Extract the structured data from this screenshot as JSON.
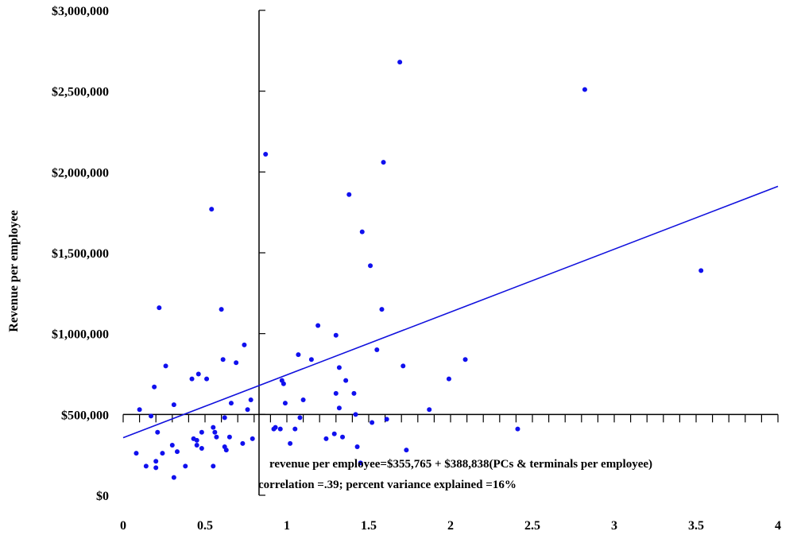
{
  "chart_data": {
    "type": "scatter",
    "title": "",
    "xlabel": "",
    "ylabel": "Revenue per employee",
    "xlim": [
      0,
      4
    ],
    "ylim": [
      0,
      3000000
    ],
    "x_ticks": [
      0,
      0.5,
      1,
      1.5,
      2,
      2.5,
      3,
      3.5,
      4
    ],
    "x_tick_labels": [
      "0",
      "0.5",
      "1",
      "1.5",
      "2",
      "2.5",
      "3",
      "3.5",
      "4"
    ],
    "y_ticks": [
      0,
      500000,
      1000000,
      1500000,
      2000000,
      2500000,
      3000000
    ],
    "y_tick_labels": [
      "$0",
      "$500,000",
      "$1,000,000",
      "$1,500,000",
      "$2,000,000",
      "$2,500,000",
      "$3,000,000"
    ],
    "axis_crossing": {
      "x": 0.83,
      "y": 500000
    },
    "grid": false,
    "colors": {
      "points": "#1010ee",
      "trend": "#1010dd",
      "axes": "#000000"
    },
    "series": [
      {
        "points": [
          [
            0.08,
            260000
          ],
          [
            0.1,
            530000
          ],
          [
            0.14,
            180000
          ],
          [
            0.17,
            490000
          ],
          [
            0.19,
            670000
          ],
          [
            0.2,
            210000
          ],
          [
            0.2,
            170000
          ],
          [
            0.21,
            390000
          ],
          [
            0.22,
            1160000
          ],
          [
            0.24,
            260000
          ],
          [
            0.26,
            800000
          ],
          [
            0.3,
            310000
          ],
          [
            0.31,
            110000
          ],
          [
            0.31,
            560000
          ],
          [
            0.33,
            270000
          ],
          [
            0.38,
            180000
          ],
          [
            0.42,
            720000
          ],
          [
            0.43,
            350000
          ],
          [
            0.45,
            310000
          ],
          [
            0.45,
            340000
          ],
          [
            0.46,
            750000
          ],
          [
            0.48,
            290000
          ],
          [
            0.48,
            390000
          ],
          [
            0.51,
            720000
          ],
          [
            0.54,
            1770000
          ],
          [
            0.55,
            180000
          ],
          [
            0.55,
            420000
          ],
          [
            0.56,
            390000
          ],
          [
            0.57,
            360000
          ],
          [
            0.6,
            1150000
          ],
          [
            0.61,
            840000
          ],
          [
            0.62,
            300000
          ],
          [
            0.62,
            480000
          ],
          [
            0.63,
            280000
          ],
          [
            0.65,
            360000
          ],
          [
            0.66,
            570000
          ],
          [
            0.69,
            820000
          ],
          [
            0.73,
            320000
          ],
          [
            0.74,
            930000
          ],
          [
            0.76,
            530000
          ],
          [
            0.78,
            590000
          ],
          [
            0.79,
            350000
          ],
          [
            0.87,
            2110000
          ],
          [
            0.92,
            410000
          ],
          [
            0.93,
            420000
          ],
          [
            0.96,
            410000
          ],
          [
            0.97,
            710000
          ],
          [
            0.98,
            690000
          ],
          [
            0.99,
            570000
          ],
          [
            1.02,
            320000
          ],
          [
            1.05,
            410000
          ],
          [
            1.07,
            870000
          ],
          [
            1.08,
            480000
          ],
          [
            1.1,
            590000
          ],
          [
            1.15,
            840000
          ],
          [
            1.19,
            1050000
          ],
          [
            1.24,
            350000
          ],
          [
            1.29,
            380000
          ],
          [
            1.3,
            630000
          ],
          [
            1.3,
            990000
          ],
          [
            1.32,
            790000
          ],
          [
            1.32,
            540000
          ],
          [
            1.34,
            360000
          ],
          [
            1.36,
            710000
          ],
          [
            1.38,
            1860000
          ],
          [
            1.41,
            630000
          ],
          [
            1.42,
            500000
          ],
          [
            1.43,
            300000
          ],
          [
            1.45,
            200000
          ],
          [
            1.46,
            1630000
          ],
          [
            1.51,
            1420000
          ],
          [
            1.52,
            450000
          ],
          [
            1.55,
            900000
          ],
          [
            1.58,
            1150000
          ],
          [
            1.59,
            2060000
          ],
          [
            1.61,
            470000
          ],
          [
            1.69,
            2680000
          ],
          [
            1.71,
            800000
          ],
          [
            1.73,
            280000
          ],
          [
            1.87,
            530000
          ],
          [
            1.99,
            720000
          ],
          [
            2.09,
            840000
          ],
          [
            2.41,
            410000
          ],
          [
            2.82,
            2510000
          ],
          [
            3.53,
            1390000
          ]
        ]
      }
    ],
    "trendline": {
      "intercept": 355765,
      "slope": 388838,
      "x_range": [
        0,
        4
      ]
    },
    "annotations": [
      "revenue per employee=$355,765 + $388,838(PCs & terminals per employee)",
      "correlation =.39; percent variance explained =16%"
    ]
  }
}
